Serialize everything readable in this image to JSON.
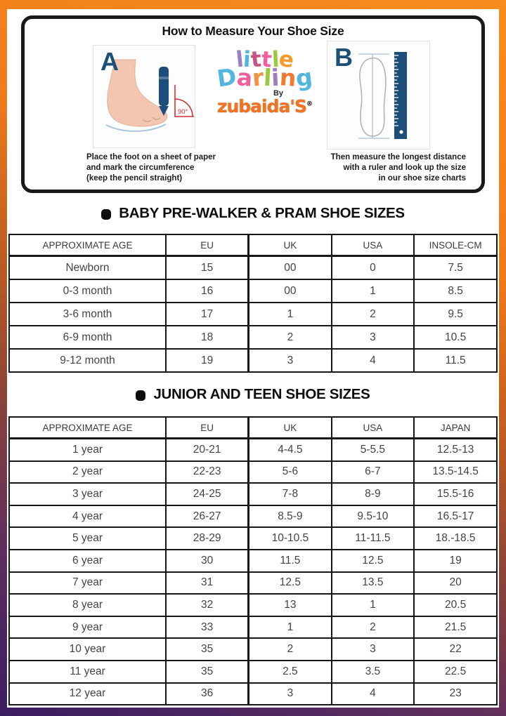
{
  "page": {
    "gradient_colors": [
      "#f78d1d",
      "#c05e20",
      "#8f4536",
      "#3a1d61"
    ],
    "panel_background": "#ffffff"
  },
  "header": {
    "title": "How to Measure Your Shoe Size",
    "panel_a": {
      "label": "A",
      "angle_label": "90°",
      "caption_lines": [
        "Place the foot on a sheet of paper",
        "and mark the circumference",
        "(keep the pencil straight)"
      ],
      "foot_color": "#f2c6b0",
      "pencil_color": "#1d4e79",
      "angle_color": "#cc3333"
    },
    "panel_b": {
      "label": "B",
      "caption_lines": [
        "Then measure the longest distance",
        "with a ruler and look up the size",
        "in our shoe size charts"
      ],
      "ruler_color": "#1d4e79",
      "outline_color": "#b5b5b5"
    },
    "step_letter_color": "#1b5078",
    "logo": {
      "word1": [
        {
          "ch": "l",
          "color": "#9b7fc0",
          "rot": -6
        },
        {
          "ch": "i",
          "color": "#52b7e0",
          "rot": 3
        },
        {
          "ch": "t",
          "color": "#c75480",
          "rot": -5
        },
        {
          "ch": "t",
          "color": "#f0609f",
          "rot": 5
        },
        {
          "ch": "l",
          "color": "#9dc93e",
          "rot": -3
        },
        {
          "ch": "e",
          "color": "#f59b2a",
          "rot": 7
        }
      ],
      "word2": [
        {
          "ch": "D",
          "color": "#52b7e0",
          "rot": -8
        },
        {
          "ch": "a",
          "color": "#ee5f9e",
          "rot": 4
        },
        {
          "ch": "r",
          "color": "#f59440",
          "rot": -5
        },
        {
          "ch": "l",
          "color": "#9dc93e",
          "rot": 3
        },
        {
          "ch": "i",
          "color": "#9b7fc0",
          "rot": -3
        },
        {
          "ch": "n",
          "color": "#f07a30",
          "rot": 4
        },
        {
          "ch": "g",
          "color": "#52b7e0",
          "rot": -7
        }
      ],
      "by": "By",
      "brand": "zubaida'S",
      "registered": "®",
      "brand_color": "#f4731f"
    }
  },
  "tables": [
    {
      "title": "BABY PRE-WALKER & PRAM SHOE SIZES",
      "columns": [
        "APPROXIMATE AGE",
        "EU",
        "UK",
        "USA",
        "INSOLE-CM"
      ],
      "rows": [
        [
          "Newborn",
          "15",
          "00",
          "0",
          "7.5"
        ],
        [
          "0-3 month",
          "16",
          "00",
          "1",
          "8.5"
        ],
        [
          "3-6 month",
          "17",
          "1",
          "2",
          "9.5"
        ],
        [
          "6-9 month",
          "18",
          "2",
          "3",
          "10.5"
        ],
        [
          "9-12 month",
          "19",
          "3",
          "4",
          "11.5"
        ]
      ]
    },
    {
      "title": "JUNIOR AND TEEN SHOE SIZES",
      "columns": [
        "APPROXIMATE AGE",
        "EU",
        "UK",
        "USA",
        "JAPAN"
      ],
      "rows": [
        [
          "1 year",
          "20-21",
          "4-4.5",
          "5-5.5",
          "12.5-13"
        ],
        [
          "2 year",
          "22-23",
          "5-6",
          "6-7",
          "13.5-14.5"
        ],
        [
          "3 year",
          "24-25",
          "7-8",
          "8-9",
          "15.5-16"
        ],
        [
          "4 year",
          "26-27",
          "8.5-9",
          "9.5-10",
          "16.5-17"
        ],
        [
          "5 year",
          "28-29",
          "10-10.5",
          "11-11.5",
          "18.-18.5"
        ],
        [
          "6 year",
          "30",
          "11.5",
          "12.5",
          "19"
        ],
        [
          "7 year",
          "31",
          "12.5",
          "13.5",
          "20"
        ],
        [
          "8 year",
          "32",
          "13",
          "1",
          "20.5"
        ],
        [
          "9 year",
          "33",
          "1",
          "2",
          "21.5"
        ],
        [
          "10 year",
          "35",
          "2",
          "3",
          "22"
        ],
        [
          "11 year",
          "35",
          "2.5",
          "3.5",
          "22.5"
        ],
        [
          "12 year",
          "36",
          "3",
          "4",
          "23"
        ]
      ]
    }
  ]
}
